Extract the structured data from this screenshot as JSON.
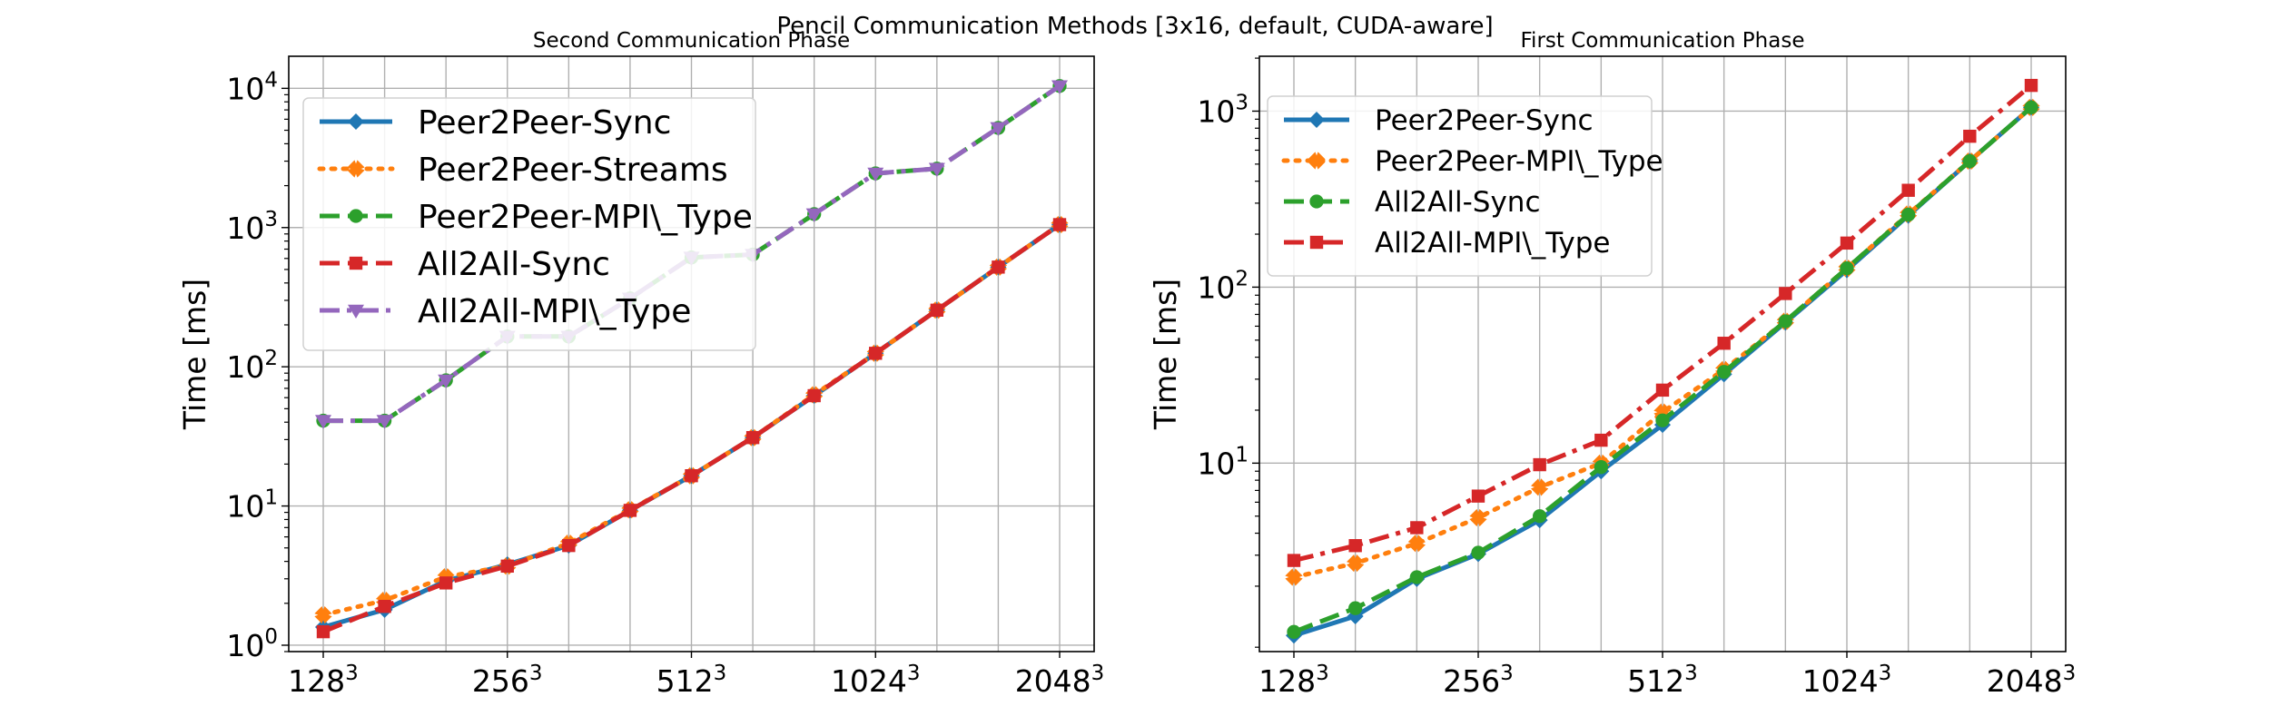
{
  "figure": {
    "suptitle": "Pencil Communication Methods [3x16, default, CUDA-aware]"
  },
  "chart_data": [
    {
      "type": "line",
      "title": "Second Communication Phase",
      "xlabel": "",
      "ylabel": "Time [ms]",
      "yscale": "log",
      "ylim": [
        0.9,
        17000
      ],
      "grid": true,
      "legend_position": "upper-left",
      "x_ticks": [
        {
          "base": "128",
          "exp": "3",
          "index": 0
        },
        {
          "base": "256",
          "exp": "3",
          "index": 3
        },
        {
          "base": "512",
          "exp": "3",
          "index": 6
        },
        {
          "base": "1024",
          "exp": "3",
          "index": 9
        },
        {
          "base": "2048",
          "exp": "3",
          "index": 12
        }
      ],
      "y_ticks": [
        {
          "base": "10",
          "exp": "0",
          "value": 1
        },
        {
          "base": "10",
          "exp": "1",
          "value": 10
        },
        {
          "base": "10",
          "exp": "2",
          "value": 100
        },
        {
          "base": "10",
          "exp": "3",
          "value": 1000
        },
        {
          "base": "10",
          "exp": "4",
          "value": 10000
        }
      ],
      "series": [
        {
          "name": "Peer2Peer-Sync",
          "color": "#1f77b4",
          "dash": "solid",
          "marker": "diamond",
          "values": [
            1.35,
            1.8,
            2.9,
            3.8,
            5.2,
            9.3,
            16.5,
            31,
            62,
            125,
            255,
            520,
            1050
          ]
        },
        {
          "name": "Peer2Peer-Streams",
          "color": "#ff7f0e",
          "dash": "dotted",
          "marker": "x",
          "values": [
            1.65,
            2.1,
            3.1,
            3.7,
            5.4,
            9.4,
            16.5,
            31,
            63,
            125,
            255,
            520,
            1050
          ]
        },
        {
          "name": "Peer2Peer-MPI\\_Type",
          "color": "#2ca02c",
          "dash": "dashed",
          "marker": "circle",
          "values": [
            41,
            41,
            80,
            165,
            165,
            310,
            610,
            640,
            1250,
            2450,
            2650,
            5200,
            10400
          ]
        },
        {
          "name": "All2All-Sync",
          "color": "#d62728",
          "dash": "dashed",
          "marker": "square",
          "values": [
            1.25,
            1.9,
            2.8,
            3.7,
            5.2,
            9.3,
            16.5,
            31,
            62,
            125,
            255,
            520,
            1050
          ]
        },
        {
          "name": "All2All-MPI\\_Type",
          "color": "#9467bd",
          "dash": "dashdot",
          "marker": "triangle-down",
          "values": [
            41,
            41,
            80,
            165,
            165,
            310,
            610,
            640,
            1250,
            2450,
            2650,
            5200,
            10400
          ]
        }
      ]
    },
    {
      "type": "line",
      "title": "First Communication Phase",
      "xlabel": "",
      "ylabel": "Time [ms]",
      "yscale": "log",
      "ylim": [
        0.85,
        2050
      ],
      "grid": true,
      "legend_position": "upper-left",
      "x_ticks": [
        {
          "base": "128",
          "exp": "3",
          "index": 0
        },
        {
          "base": "256",
          "exp": "3",
          "index": 3
        },
        {
          "base": "512",
          "exp": "3",
          "index": 6
        },
        {
          "base": "1024",
          "exp": "3",
          "index": 9
        },
        {
          "base": "2048",
          "exp": "3",
          "index": 12
        }
      ],
      "y_ticks": [
        {
          "base": "10",
          "exp": "1",
          "value": 10
        },
        {
          "base": "10",
          "exp": "2",
          "value": 100
        },
        {
          "base": "10",
          "exp": "3",
          "value": 1000
        }
      ],
      "series": [
        {
          "name": "Peer2Peer-Sync",
          "color": "#1f77b4",
          "dash": "solid",
          "marker": "diamond",
          "values": [
            1.05,
            1.35,
            2.2,
            3.05,
            4.75,
            9.0,
            16.5,
            32,
            63,
            125,
            255,
            520,
            1050
          ]
        },
        {
          "name": "Peer2Peer-MPI\\_Type",
          "color": "#ff7f0e",
          "dash": "dotted",
          "marker": "x",
          "values": [
            2.25,
            2.7,
            3.5,
            4.9,
            7.3,
            10.0,
            19.5,
            34,
            64,
            128,
            260,
            520,
            1050
          ]
        },
        {
          "name": "All2All-Sync",
          "color": "#2ca02c",
          "dash": "dashed",
          "marker": "circle",
          "values": [
            1.1,
            1.5,
            2.25,
            3.1,
            5.0,
            9.5,
            17.5,
            33,
            64,
            128,
            258,
            520,
            1050
          ]
        },
        {
          "name": "All2All-MPI\\_Type",
          "color": "#d62728",
          "dash": "dashdot",
          "marker": "square",
          "values": [
            2.8,
            3.4,
            4.3,
            6.5,
            9.8,
            13.5,
            26,
            48,
            92,
            178,
            355,
            720,
            1400
          ]
        }
      ]
    }
  ]
}
